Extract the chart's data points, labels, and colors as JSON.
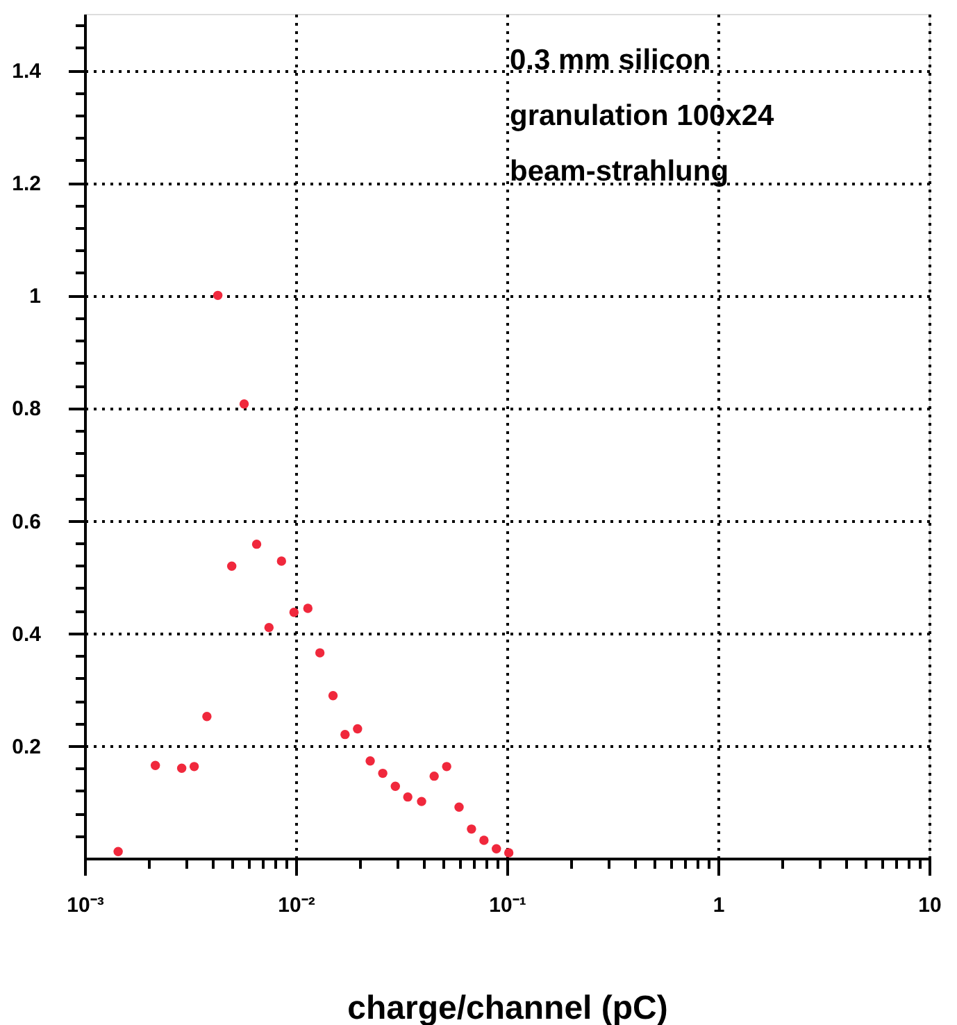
{
  "chart_data": {
    "type": "scatter",
    "xlabel": "charge/channel (pC)",
    "log": "x",
    "grid": true,
    "marker": "circle",
    "line_style": "dotted",
    "annotations": [
      "0.3 mm silicon",
      "granulation 100x24",
      "beam-strahlung"
    ],
    "x": [
      0.00144,
      0.00216,
      0.00288,
      0.0033,
      0.00379,
      0.00427,
      0.00497,
      0.00569,
      0.00652,
      0.00746,
      0.00855,
      0.0098,
      0.0114,
      0.013,
      0.015,
      0.0171,
      0.0196,
      0.0225,
      0.0258,
      0.0296,
      0.0339,
      0.0394,
      0.0452,
      0.0518,
      0.0593,
      0.0679,
      0.0778,
      0.0891,
      0.102
    ],
    "series": [
      {
        "color": "#f0283c",
        "values": [
          0.012,
          0.165,
          0.16,
          0.163,
          0.252,
          1.0,
          0.519,
          0.807,
          0.558,
          0.41,
          0.528,
          0.437,
          0.444,
          0.365,
          0.289,
          0.22,
          0.23,
          0.173,
          0.151,
          0.128,
          0.109,
          0.101,
          0.146,
          0.163,
          0.091,
          0.052,
          0.032,
          0.017,
          0.01
        ]
      }
    ],
    "xlim": [
      0.001,
      10
    ],
    "ylim": [
      0,
      1.5
    ],
    "xticks": [
      {
        "value": 0.001,
        "label": "10⁻³"
      },
      {
        "value": 0.002,
        "label": null
      },
      {
        "value": 0.003,
        "label": null
      },
      {
        "value": 0.004,
        "label": null
      },
      {
        "value": 0.005,
        "label": null
      },
      {
        "value": 0.006,
        "label": null
      },
      {
        "value": 0.007,
        "label": null
      },
      {
        "value": 0.008,
        "label": null
      },
      {
        "value": 0.009,
        "label": null
      },
      {
        "value": 0.01,
        "label": "10⁻²"
      },
      {
        "value": 0.02,
        "label": null
      },
      {
        "value": 0.03,
        "label": null
      },
      {
        "value": 0.04,
        "label": null
      },
      {
        "value": 0.05,
        "label": null
      },
      {
        "value": 0.06,
        "label": null
      },
      {
        "value": 0.07,
        "label": null
      },
      {
        "value": 0.08,
        "label": null
      },
      {
        "value": 0.09,
        "label": null
      },
      {
        "value": 0.1,
        "label": "10⁻¹"
      },
      {
        "value": 0.2,
        "label": null
      },
      {
        "value": 0.3,
        "label": null
      },
      {
        "value": 0.4,
        "label": null
      },
      {
        "value": 0.5,
        "label": null
      },
      {
        "value": 0.6,
        "label": null
      },
      {
        "value": 0.7,
        "label": null
      },
      {
        "value": 0.8,
        "label": null
      },
      {
        "value": 0.9,
        "label": null
      },
      {
        "value": 1,
        "label": "1"
      },
      {
        "value": 2,
        "label": null
      },
      {
        "value": 3,
        "label": null
      },
      {
        "value": 4,
        "label": null
      },
      {
        "value": 5,
        "label": null
      },
      {
        "value": 6,
        "label": null
      },
      {
        "value": 7,
        "label": null
      },
      {
        "value": 8,
        "label": null
      },
      {
        "value": 9,
        "label": null
      },
      {
        "value": 10,
        "label": "10"
      }
    ],
    "yticks": [
      {
        "value": 0.04,
        "label": null
      },
      {
        "value": 0.08,
        "label": null
      },
      {
        "value": 0.12,
        "label": null
      },
      {
        "value": 0.16,
        "label": null
      },
      0.2,
      {
        "value": 0.24,
        "label": null
      },
      {
        "value": 0.28,
        "label": null
      },
      {
        "value": 0.32,
        "label": null
      },
      {
        "value": 0.36,
        "label": null
      },
      0.4,
      {
        "value": 0.44,
        "label": null
      },
      {
        "value": 0.48,
        "label": null
      },
      {
        "value": 0.52,
        "label": null
      },
      {
        "value": 0.56,
        "label": null
      },
      0.6,
      {
        "value": 0.64,
        "label": null
      },
      {
        "value": 0.68,
        "label": null
      },
      {
        "value": 0.72,
        "label": null
      },
      {
        "value": 0.76,
        "label": null
      },
      0.8,
      {
        "value": 0.84,
        "label": null
      },
      {
        "value": 0.88,
        "label": null
      },
      {
        "value": 0.92,
        "label": null
      },
      {
        "value": 0.96,
        "label": null
      },
      1,
      {
        "value": 1.04,
        "label": null
      },
      {
        "value": 1.08,
        "label": null
      },
      {
        "value": 1.12,
        "label": null
      },
      {
        "value": 1.16,
        "label": null
      },
      1.2,
      {
        "value": 1.24,
        "label": null
      },
      {
        "value": 1.28,
        "label": null
      },
      {
        "value": 1.32,
        "label": null
      },
      {
        "value": 1.36,
        "label": null
      },
      1.4,
      {
        "value": 1.44,
        "label": null
      },
      {
        "value": 1.48,
        "label": null
      }
    ]
  }
}
